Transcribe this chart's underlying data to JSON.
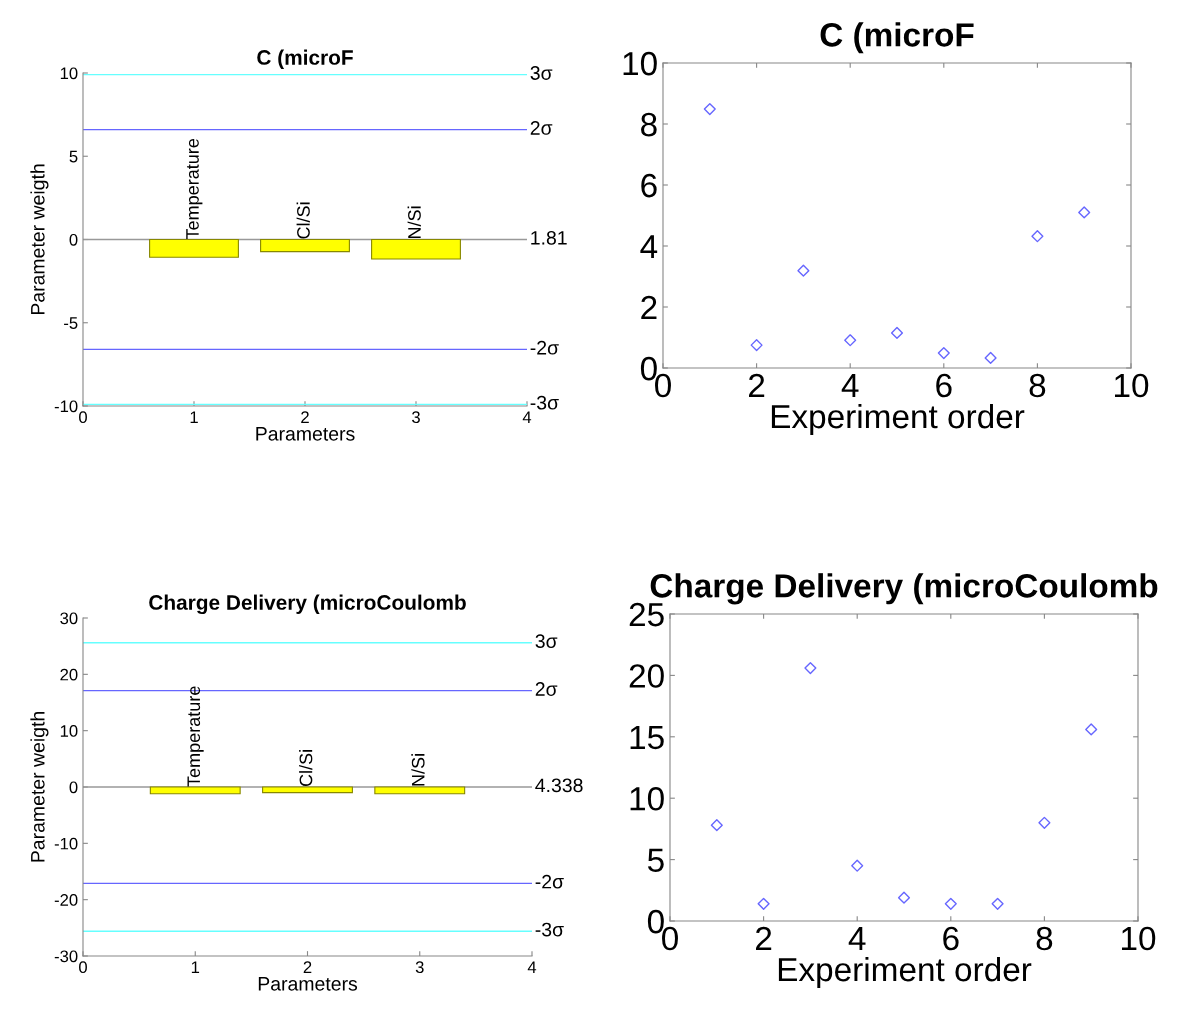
{
  "chart_data": [
    {
      "type": "bar",
      "title": "C (microF",
      "xlabel": "Parameters",
      "ylabel": "Parameter weigth",
      "x": [
        1,
        2,
        3
      ],
      "values": [
        -1.07,
        -0.73,
        -1.17
      ],
      "color": "#ffff00",
      "xlim": [
        0,
        4
      ],
      "xticks": [
        0,
        1,
        2,
        3,
        4
      ],
      "ylim": [
        -10,
        10
      ],
      "yticks": [
        -10,
        -5,
        0,
        5,
        10
      ],
      "annotations": [
        {
          "text": "Temperature",
          "x": 1,
          "y": 0
        },
        {
          "text": "Cl/Si",
          "x": 2,
          "y": 0
        },
        {
          "text": "N/Si",
          "x": 3,
          "y": 0
        },
        {
          "text": "1.81",
          "x": 4,
          "y": 0
        }
      ],
      "ref_lines": [
        {
          "axis": "y",
          "value": 9.9,
          "label": "3σ",
          "color": "#66ffff"
        },
        {
          "axis": "y",
          "value": 6.6,
          "label": "2σ",
          "color": "#6666ff"
        },
        {
          "axis": "y",
          "value": 0,
          "color": "#999999"
        },
        {
          "axis": "y",
          "value": -6.6,
          "label": "-2σ",
          "color": "#6666ff"
        },
        {
          "axis": "y",
          "value": -9.9,
          "label": "-3σ",
          "color": "#66ffff"
        }
      ]
    },
    {
      "type": "scatter",
      "title": "C (microF",
      "xlabel": "Experiment order",
      "x": [
        1,
        2,
        3,
        4,
        5,
        6,
        7,
        8,
        9
      ],
      "values": [
        8.49,
        0.75,
        3.19,
        0.91,
        1.15,
        0.49,
        0.33,
        4.32,
        5.1
      ],
      "color": "#6666ff",
      "marker": "diamond",
      "xlim": [
        0,
        10
      ],
      "xticks": [
        0,
        2,
        4,
        6,
        8,
        10
      ],
      "ylim": [
        0,
        10
      ],
      "yticks": [
        0,
        2,
        4,
        6,
        8,
        10
      ]
    },
    {
      "type": "bar",
      "title": "Charge Delivery (microCoulomb",
      "xlabel": "Parameters",
      "ylabel": "Parameter weigth",
      "x": [
        1,
        2,
        3
      ],
      "values": [
        -1.2,
        -1.0,
        -1.2
      ],
      "color": "#ffff00",
      "xlim": [
        0,
        4
      ],
      "xticks": [
        0,
        1,
        2,
        3,
        4
      ],
      "ylim": [
        -30,
        30
      ],
      "yticks": [
        -30,
        -20,
        -10,
        0,
        10,
        20,
        30
      ],
      "annotations": [
        {
          "text": "Temperature",
          "x": 1,
          "y": 0
        },
        {
          "text": "Cl/Si",
          "x": 2,
          "y": 0
        },
        {
          "text": "N/Si",
          "x": 3,
          "y": 0
        },
        {
          "text": "4.338",
          "x": 4,
          "y": 0
        }
      ],
      "ref_lines": [
        {
          "axis": "y",
          "value": 25.6,
          "label": "3σ",
          "color": "#66ffff"
        },
        {
          "axis": "y",
          "value": 17.1,
          "label": "2σ",
          "color": "#6666ff"
        },
        {
          "axis": "y",
          "value": 0,
          "color": "#999999"
        },
        {
          "axis": "y",
          "value": -17.1,
          "label": "-2σ",
          "color": "#6666ff"
        },
        {
          "axis": "y",
          "value": -25.6,
          "label": "-3σ",
          "color": "#66ffff"
        }
      ]
    },
    {
      "type": "scatter",
      "title": "Charge Delivery (microCoulomb",
      "xlabel": "Experiment order",
      "x": [
        1,
        2,
        3,
        4,
        5,
        6,
        7,
        8,
        9
      ],
      "values": [
        7.8,
        1.4,
        20.6,
        4.5,
        1.9,
        1.4,
        1.4,
        8.0,
        15.6
      ],
      "color": "#6666ff",
      "marker": "diamond",
      "xlim": [
        0,
        10
      ],
      "xticks": [
        0,
        2,
        4,
        6,
        8,
        10
      ],
      "ylim": [
        0,
        25
      ],
      "yticks": [
        0,
        5,
        10,
        15,
        20,
        25
      ]
    }
  ]
}
